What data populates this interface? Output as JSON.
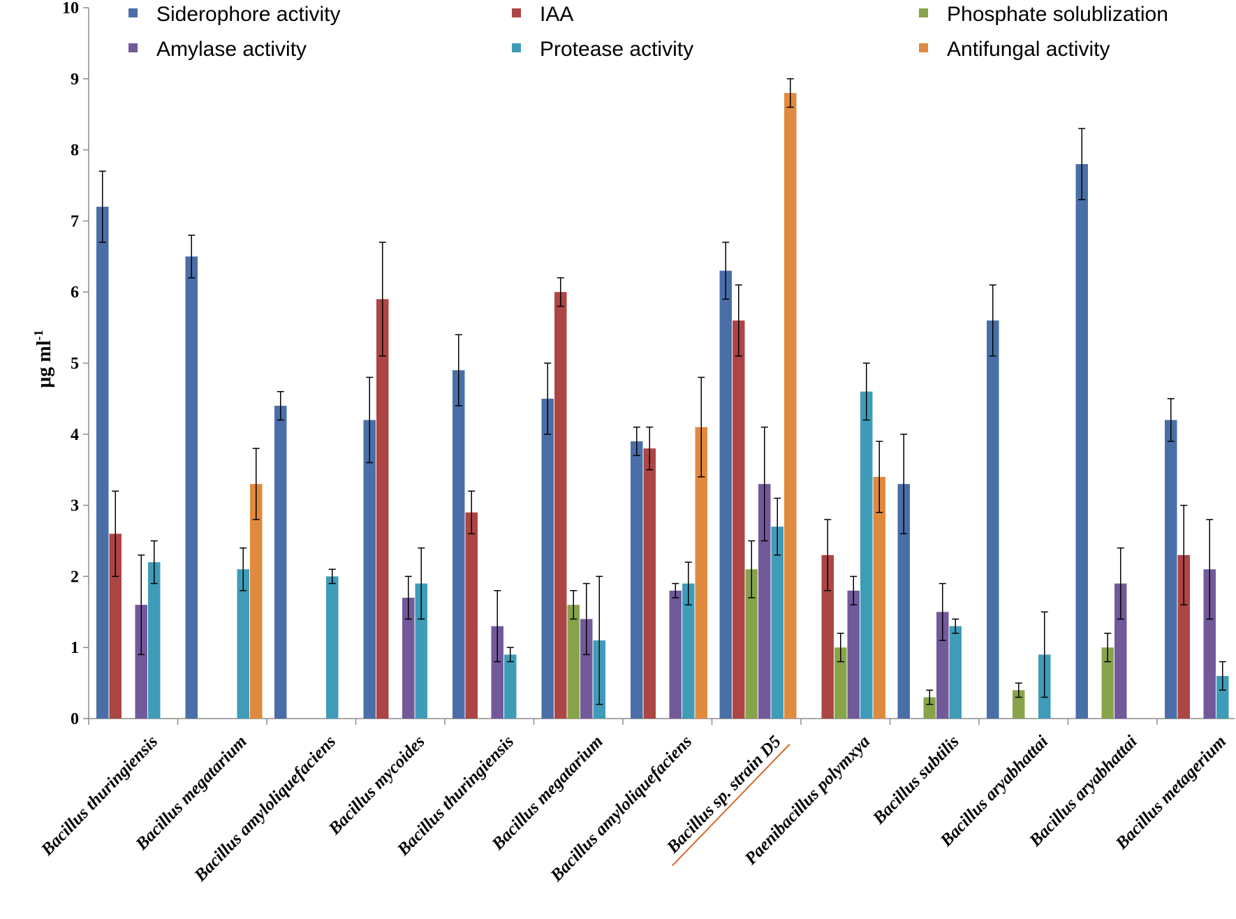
{
  "chart_data": {
    "type": "bar",
    "title": "",
    "xlabel": "",
    "ylabel": "μg ml",
    "ylabel_superscript": "-1",
    "ylim": [
      0,
      10
    ],
    "yticks": [
      "0",
      "1",
      "2",
      "3",
      "4",
      "5",
      "6",
      "7",
      "8",
      "9",
      "10"
    ],
    "legend_position": "top",
    "grid": false,
    "categories": [
      "Bacillus thuringiensis",
      "Bacillus megatarium",
      "Bacillus amyloliquefaciens",
      "Bacillus mycoides",
      "Bacillus thuringiensis",
      "Bacillus megatarium",
      "Bacillus amyloliquefaciens",
      "Bacillus sp. strain D5",
      "Paenibacillus polymxya",
      "Bacillus subtilis",
      "Bacillus aryabhattai",
      "Bacillus aryabhattai",
      "Bacillus metagerium"
    ],
    "highlighted_category_index": 7,
    "series": [
      {
        "name": "Siderophore activity",
        "color": "#4a6fa8",
        "values": [
          7.2,
          6.5,
          4.4,
          4.2,
          4.9,
          4.5,
          3.9,
          6.3,
          0,
          3.3,
          5.6,
          7.8,
          4.2
        ],
        "errors": [
          0.5,
          0.3,
          0.2,
          0.6,
          0.5,
          0.5,
          0.2,
          0.4,
          0,
          0.7,
          0.5,
          0.5,
          0.3
        ]
      },
      {
        "name": "IAA",
        "color": "#ad4544",
        "values": [
          2.6,
          0,
          0,
          5.9,
          2.9,
          6.0,
          3.8,
          5.6,
          2.3,
          0,
          0,
          0,
          2.3
        ],
        "errors": [
          0.6,
          0,
          0,
          0.8,
          0.3,
          0.2,
          0.3,
          0.5,
          0.5,
          0,
          0,
          0,
          0.7
        ]
      },
      {
        "name": "Phosphate solublization",
        "color": "#88a44a",
        "values": [
          0,
          0,
          0,
          0,
          0,
          1.6,
          0,
          2.1,
          1.0,
          0.3,
          0.4,
          1.0,
          0
        ],
        "errors": [
          0,
          0,
          0,
          0,
          0,
          0.2,
          0,
          0.4,
          0.2,
          0.1,
          0.1,
          0.2,
          0
        ]
      },
      {
        "name": "Amylase activity",
        "color": "#72599a",
        "values": [
          1.6,
          0,
          0,
          1.7,
          1.3,
          1.4,
          1.8,
          3.3,
          1.8,
          1.5,
          0,
          1.9,
          2.1
        ],
        "errors": [
          0.7,
          0,
          0,
          0.3,
          0.5,
          0.5,
          0.1,
          0.8,
          0.2,
          0.4,
          0,
          0.5,
          0.7
        ]
      },
      {
        "name": "Protease activity",
        "color": "#3f9cb8",
        "values": [
          2.2,
          2.1,
          2.0,
          1.9,
          0.9,
          1.1,
          1.9,
          2.7,
          4.6,
          1.3,
          0.9,
          0,
          0.6
        ],
        "errors": [
          0.3,
          0.3,
          0.1,
          0.5,
          0.1,
          0.9,
          0.3,
          0.4,
          0.4,
          0.1,
          0.6,
          0,
          0.2
        ]
      },
      {
        "name": "Antifungal activity",
        "color": "#df8a3f",
        "values": [
          0,
          3.3,
          0,
          0,
          0,
          0,
          4.1,
          8.8,
          3.4,
          0,
          0,
          0,
          0
        ],
        "errors": [
          0,
          0.5,
          0,
          0,
          0,
          0,
          0.7,
          0.2,
          0.5,
          0,
          0,
          0,
          0
        ]
      }
    ]
  }
}
